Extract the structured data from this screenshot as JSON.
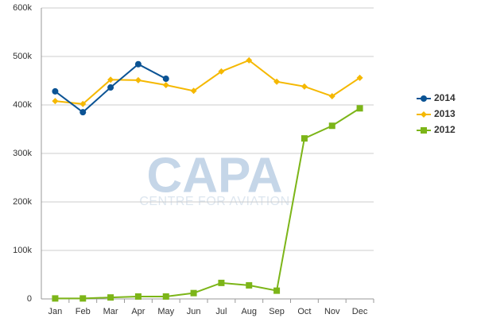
{
  "chart_data": {
    "type": "line",
    "watermark": {
      "title": "CAPA",
      "subtitle": "CENTRE FOR AVIATION"
    },
    "categories": [
      "Jan",
      "Feb",
      "Mar",
      "Apr",
      "May",
      "Jun",
      "Jul",
      "Aug",
      "Sep",
      "Oct",
      "Nov",
      "Dec"
    ],
    "series": [
      {
        "name": "2014",
        "color": "#0b5394",
        "marker": "circle",
        "values": [
          428000,
          385000,
          436000,
          484000,
          454000,
          null,
          null,
          null,
          null,
          null,
          null,
          null
        ]
      },
      {
        "name": "2013",
        "color": "#f5b800",
        "marker": "diamond",
        "values": [
          408000,
          402000,
          452000,
          451000,
          441000,
          429000,
          469000,
          492000,
          448000,
          438000,
          418000,
          456000
        ]
      },
      {
        "name": "2012",
        "color": "#7cb518",
        "marker": "square",
        "values": [
          1000,
          1000,
          3000,
          5000,
          5000,
          12000,
          33000,
          28000,
          17000,
          331000,
          357000,
          393000
        ]
      }
    ],
    "ylim": [
      0,
      600000
    ],
    "yticks": [
      0,
      {
        "value": 100000,
        "label": "100k"
      },
      {
        "value": 200000,
        "label": "200k"
      },
      {
        "value": 300000,
        "label": "300k"
      },
      {
        "value": 400000,
        "label": "400k"
      },
      {
        "value": 500000,
        "label": "500k"
      },
      {
        "value": 600000,
        "label": "600k"
      }
    ],
    "grid": true,
    "legend": "right"
  }
}
